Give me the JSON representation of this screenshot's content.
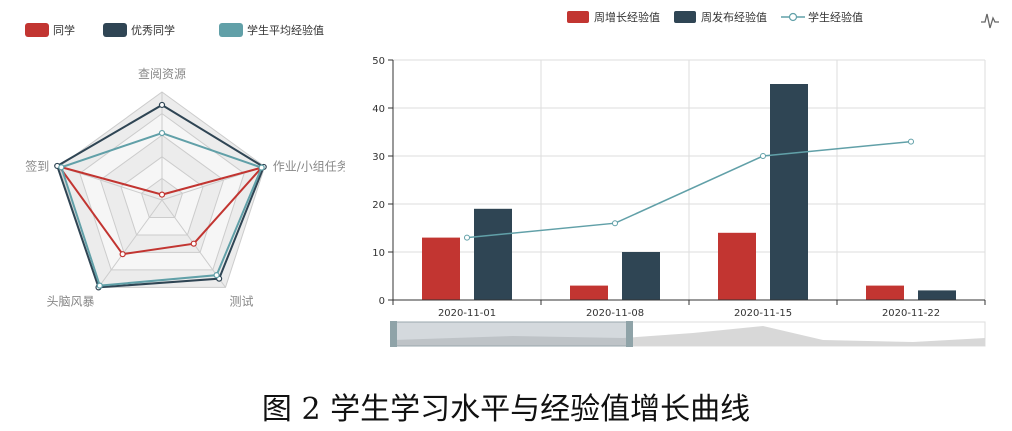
{
  "caption": "图 2 学生学习水平与经验值增长曲线",
  "chart_data": [
    {
      "type": "radar",
      "indicators": [
        "查阅资源",
        "作业/小组任务",
        "测试",
        "头脑风暴",
        "签到"
      ],
      "series": [
        {
          "name": "同学",
          "color": "#c23531",
          "values": [
            0.05,
            0.97,
            0.5,
            0.62,
            1.0
          ]
        },
        {
          "name": "优秀同学",
          "color": "#2f4554",
          "values": [
            0.88,
            0.99,
            0.9,
            1.0,
            1.02
          ]
        },
        {
          "name": "学生平均经验值",
          "color": "#61a0a8",
          "values": [
            0.62,
            0.97,
            0.86,
            0.98,
            0.98
          ]
        }
      ]
    },
    {
      "type": "bar",
      "categories": [
        "2020-11-01",
        "2020-11-08",
        "2020-11-15",
        "2020-11-22"
      ],
      "ylim": [
        0,
        50
      ],
      "yticks": [
        "0",
        "10",
        "20",
        "30",
        "40",
        "50"
      ],
      "series": [
        {
          "name": "周增长经验值",
          "type": "bar",
          "color": "#c23531",
          "values": [
            13,
            3,
            14,
            3
          ]
        },
        {
          "name": "周发布经验值",
          "type": "bar",
          "color": "#2f4554",
          "values": [
            19,
            10,
            45,
            2
          ]
        },
        {
          "name": "学生经验值",
          "type": "line",
          "color": "#61a0a8",
          "values": [
            13,
            16,
            30,
            33
          ]
        }
      ],
      "grid": true,
      "legend": "top-center"
    }
  ]
}
